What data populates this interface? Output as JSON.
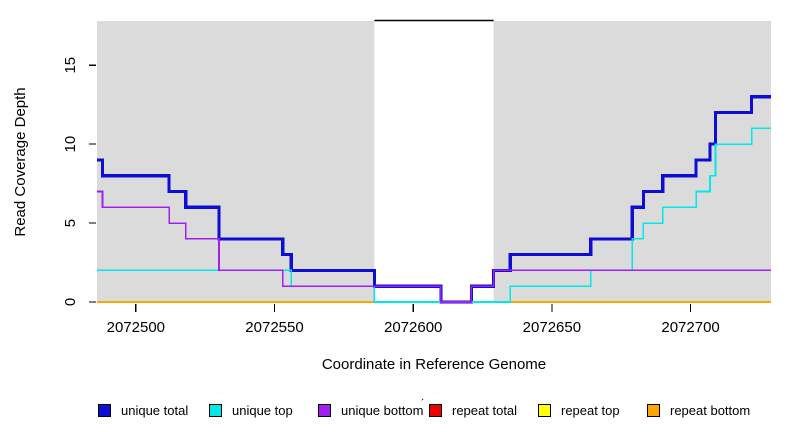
{
  "chart_data": {
    "type": "line",
    "subtype": "step-coverage",
    "title": "",
    "xlabel": "Coordinate in Reference Genome",
    "ylabel": "Read Coverage Depth",
    "x_range": [
      2072486,
      2072729
    ],
    "y_range": [
      0,
      17.8
    ],
    "x_ticks": [
      2072500,
      2072550,
      2072600,
      2072650,
      2072700
    ],
    "y_ticks": [
      0,
      5,
      10,
      15
    ],
    "grid": false,
    "legend_position": "bottom",
    "background_color": "#FFFFFF",
    "masked_region_color": "#DBDBDB",
    "masked_regions": [
      {
        "x0": 2072486,
        "x1": 2072586
      },
      {
        "x0": 2072629,
        "x1": 2072729
      }
    ],
    "gap_region": {
      "x0": 2072586,
      "x1": 2072629,
      "top_line_color": "#000000"
    },
    "series": [
      {
        "name": "repeat total",
        "color": "#EE0000",
        "width": 1.6,
        "steps": [
          [
            2072486,
            0
          ]
        ]
      },
      {
        "name": "repeat top",
        "color": "#FFFF00",
        "width": 1.6,
        "steps": [
          [
            2072486,
            0
          ]
        ]
      },
      {
        "name": "repeat bottom",
        "color": "#FFA500",
        "width": 1.8,
        "steps": [
          [
            2072486,
            0
          ]
        ]
      },
      {
        "name": "unique total",
        "color": "#0D0DD3",
        "width": 3.2,
        "steps": [
          [
            2072486,
            9
          ],
          [
            2072488,
            8
          ],
          [
            2072512,
            7
          ],
          [
            2072518,
            6
          ],
          [
            2072530,
            4
          ],
          [
            2072553,
            3
          ],
          [
            2072556,
            2
          ],
          [
            2072586,
            1
          ],
          [
            2072610,
            0
          ],
          [
            2072621,
            1
          ],
          [
            2072629,
            2
          ],
          [
            2072635,
            3
          ],
          [
            2072664,
            4
          ],
          [
            2072679,
            6
          ],
          [
            2072683,
            7
          ],
          [
            2072690,
            8
          ],
          [
            2072702,
            9
          ],
          [
            2072707,
            10
          ],
          [
            2072709,
            12
          ],
          [
            2072722,
            13
          ]
        ]
      },
      {
        "name": "unique top",
        "color": "#00E9E9",
        "width": 1.6,
        "steps": [
          [
            2072486,
            2
          ],
          [
            2072556,
            1
          ],
          [
            2072586,
            0
          ],
          [
            2072635,
            1
          ],
          [
            2072664,
            2
          ],
          [
            2072679,
            4
          ],
          [
            2072683,
            5
          ],
          [
            2072690,
            6
          ],
          [
            2072702,
            7
          ],
          [
            2072707,
            8
          ],
          [
            2072709,
            10
          ],
          [
            2072722,
            11
          ]
        ]
      },
      {
        "name": "unique bottom",
        "color": "#A020F0",
        "width": 1.6,
        "steps": [
          [
            2072486,
            7
          ],
          [
            2072488,
            6
          ],
          [
            2072512,
            5
          ],
          [
            2072518,
            4
          ],
          [
            2072530,
            2
          ],
          [
            2072553,
            1
          ],
          [
            2072610,
            0
          ],
          [
            2072621,
            1
          ],
          [
            2072629,
            2
          ]
        ]
      }
    ],
    "legend": [
      {
        "label": "unique total",
        "color": "#0D0DD3"
      },
      {
        "label": "unique top",
        "color": "#00E9E9"
      },
      {
        "label": "unique bottom",
        "color": "#A020F0"
      },
      {
        "label": "repeat total",
        "color": "#EE0000"
      },
      {
        "label": "repeat top",
        "color": "#FFFF00"
      },
      {
        "label": "repeat bottom",
        "color": "#FFA500"
      }
    ],
    "legend_artifact": "´"
  }
}
